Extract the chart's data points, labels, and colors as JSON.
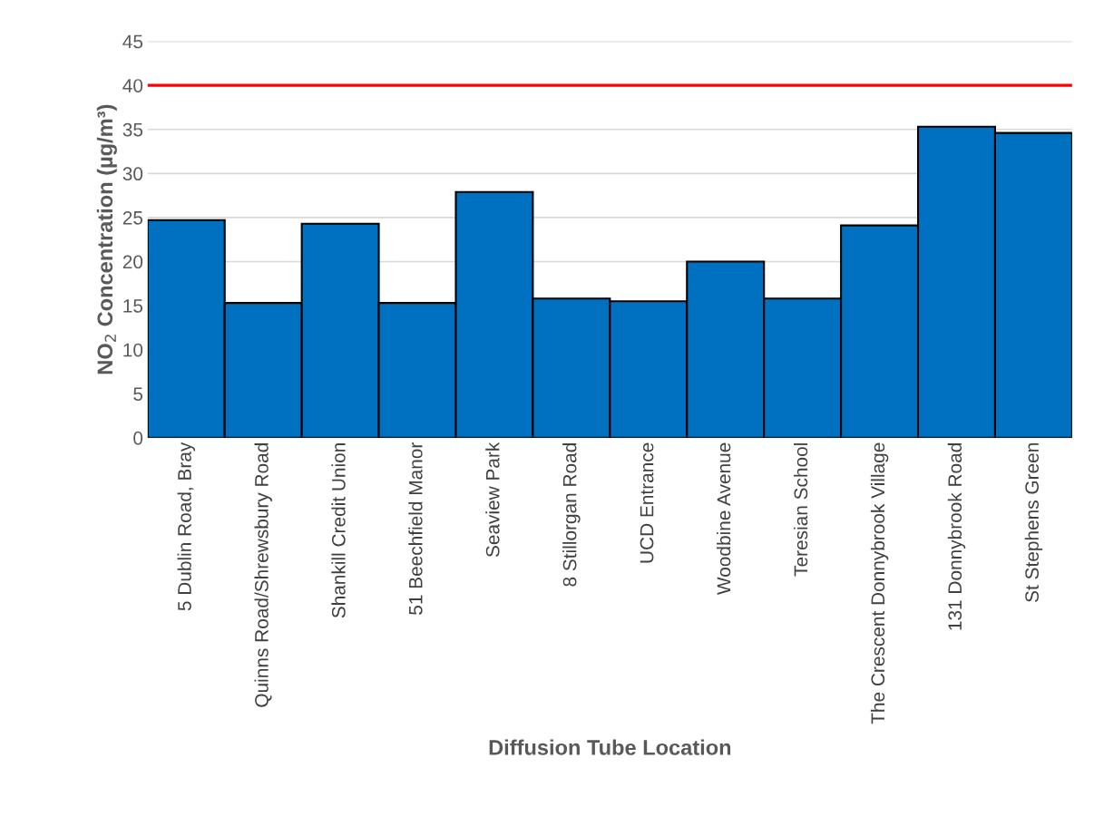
{
  "chart_data": {
    "type": "bar",
    "xlabel": "Diffusion Tube Location",
    "ylabel": "NO$_{2}$ Concentration (µg/m³)",
    "categories": [
      "5 Dublin Road, Bray",
      "Quinns Road/Shrewsbury Road",
      "Shankill Credit Union",
      "51 Beechfield Manor",
      "Seaview Park",
      "8 Stillorgan Road",
      "UCD Entrance",
      "Woodbine Avenue",
      "Teresian School",
      "The Crescent Donnybrook Village",
      "131 Donnybrook Road",
      "St Stephens Green"
    ],
    "values": [
      24.7,
      15.3,
      24.3,
      15.3,
      27.9,
      15.8,
      15.5,
      20.0,
      15.8,
      24.1,
      35.3,
      34.6
    ],
    "color": "#0070c0",
    "ylim": [
      0,
      45
    ],
    "yticks": [
      0,
      5,
      10,
      15,
      20,
      25,
      30,
      35,
      40,
      45
    ],
    "grid": "y",
    "ref_lines": [
      {
        "axis": "y",
        "value": 40,
        "color": "#ff0000"
      }
    ]
  }
}
